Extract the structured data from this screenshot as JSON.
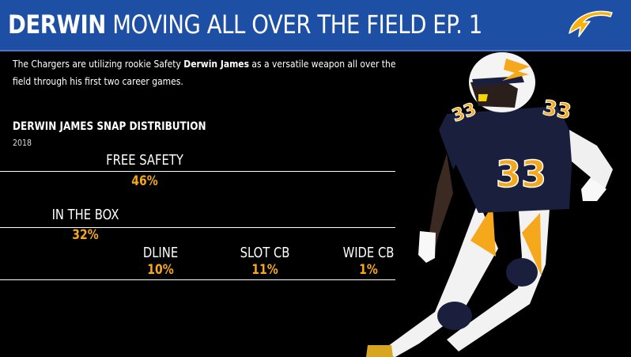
{
  "header": {
    "title_bold": "DERWIN",
    "title_rest": "MOVING ALL OVER THE FIELD EP. 1",
    "logo_icon": "chargers-bolt-logo",
    "background": "#1d4fa5"
  },
  "intro": {
    "text_before": "The Chargers are utilizing rookie Safety ",
    "text_bold": "Derwin James",
    "text_after": " as a versatile weapon all over the field through his first two career games."
  },
  "chart_data": {
    "type": "table",
    "title": "DERWIN JAMES SNAP DISTRIBUTION",
    "subtitle": "2018",
    "categories": [
      "FREE SAFETY",
      "IN THE BOX",
      "DLINE",
      "SLOT CB",
      "WIDE CB"
    ],
    "values": [
      46,
      32,
      10,
      11,
      1
    ],
    "labels": [
      "46%",
      "32%",
      "10%",
      "11%",
      "1%"
    ],
    "value_color": "#f5a81c"
  },
  "player_image": "football-player-photo"
}
